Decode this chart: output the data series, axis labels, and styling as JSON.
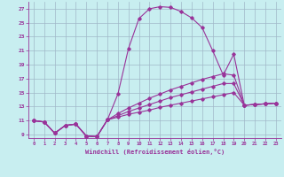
{
  "xlabel": "Windchill (Refroidissement éolien,°C)",
  "background_color": "#c8eef0",
  "grid_color": "#a0b8c8",
  "line_color": "#993399",
  "xlim": [
    -0.5,
    23.5
  ],
  "ylim": [
    8.5,
    28.0
  ],
  "yticks": [
    9,
    11,
    13,
    15,
    17,
    19,
    21,
    23,
    25,
    27
  ],
  "xticks": [
    0,
    1,
    2,
    3,
    4,
    5,
    6,
    7,
    8,
    9,
    10,
    11,
    12,
    13,
    14,
    15,
    16,
    17,
    18,
    19,
    20,
    21,
    22,
    23
  ],
  "series": [
    [
      11.0,
      10.8,
      9.2,
      10.3,
      10.5,
      8.8,
      8.7,
      11.1,
      14.8,
      21.3,
      25.6,
      27.0,
      27.3,
      27.2,
      26.6,
      25.7,
      24.3,
      21.0,
      17.5,
      20.5,
      13.2,
      13.3,
      13.4,
      13.5
    ],
    [
      11.0,
      10.8,
      9.2,
      10.3,
      10.5,
      8.8,
      8.7,
      11.1,
      11.5,
      11.9,
      12.2,
      12.5,
      12.9,
      13.2,
      13.5,
      13.8,
      14.1,
      14.4,
      14.7,
      15.0,
      13.2,
      13.3,
      13.4,
      13.5
    ],
    [
      11.0,
      10.8,
      9.2,
      10.3,
      10.5,
      8.8,
      8.7,
      11.1,
      11.7,
      12.3,
      12.8,
      13.3,
      13.8,
      14.3,
      14.7,
      15.1,
      15.5,
      15.9,
      16.3,
      16.3,
      13.2,
      13.3,
      13.4,
      13.5
    ],
    [
      11.0,
      10.8,
      9.2,
      10.3,
      10.5,
      8.8,
      8.7,
      11.1,
      12.0,
      12.8,
      13.5,
      14.2,
      14.8,
      15.4,
      15.9,
      16.4,
      16.9,
      17.3,
      17.7,
      17.5,
      13.2,
      13.3,
      13.4,
      13.5
    ]
  ]
}
